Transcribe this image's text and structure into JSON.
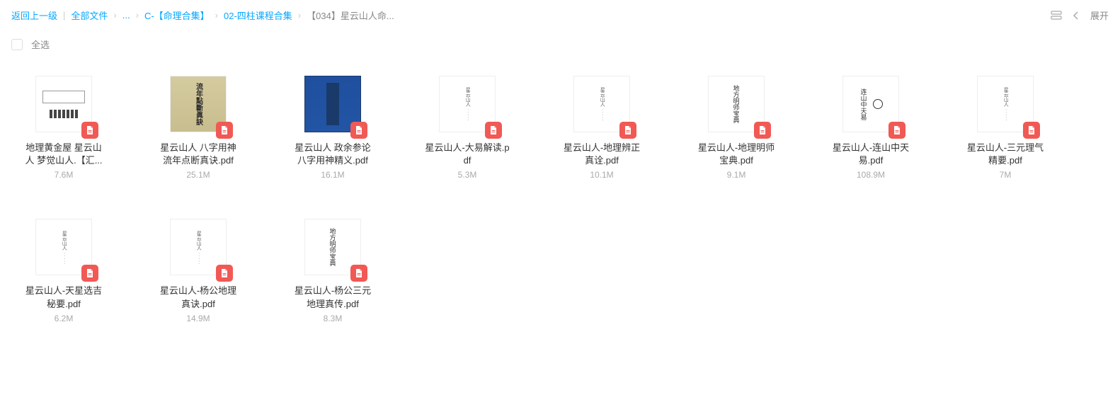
{
  "breadcrumb": {
    "back": "返回上一级",
    "root": "全部文件",
    "ellipsis": "...",
    "p1": "C-【命理合集】",
    "p2": "02-四柱课程合集",
    "current": "【034】星云山人命..."
  },
  "topRight": {
    "expand": "展开"
  },
  "selectAll": "全选",
  "files": [
    {
      "name": "地理黄金屋 星云山人 梦觉山人.【汇...",
      "size": "7.6M",
      "thumbStyle": "box1"
    },
    {
      "name": "星云山人 八字用神 流年点断真诀.pdf",
      "size": "25.1M",
      "thumbStyle": "cover1"
    },
    {
      "name": "星云山人 政余参论 八字用神精义.pdf",
      "size": "16.1M",
      "thumbStyle": "cover2"
    },
    {
      "name": "星云山人-大易解读.pdf",
      "size": "5.3M",
      "thumbStyle": "plain"
    },
    {
      "name": "星云山人-地理辨正真诠.pdf",
      "size": "10.1M",
      "thumbStyle": "plain"
    },
    {
      "name": "星云山人-地理明师宝典.pdf",
      "size": "9.1M",
      "thumbStyle": "calli"
    },
    {
      "name": "星云山人-连山中天易.pdf",
      "size": "108.9M",
      "thumbStyle": "circle"
    },
    {
      "name": "星云山人-三元理气精要.pdf",
      "size": "7M",
      "thumbStyle": "plain"
    },
    {
      "name": "星云山人-天星选吉秘要.pdf",
      "size": "6.2M",
      "thumbStyle": "plain"
    },
    {
      "name": "星云山人-杨公地理真诀.pdf",
      "size": "14.9M",
      "thumbStyle": "plain"
    },
    {
      "name": "星云山人-杨公三元地理真传.pdf",
      "size": "8.3M",
      "thumbStyle": "calli"
    }
  ],
  "colors": {
    "link": "#06a7ff",
    "pdfBadge": "#f15955",
    "textMuted": "#aaaaaa"
  }
}
